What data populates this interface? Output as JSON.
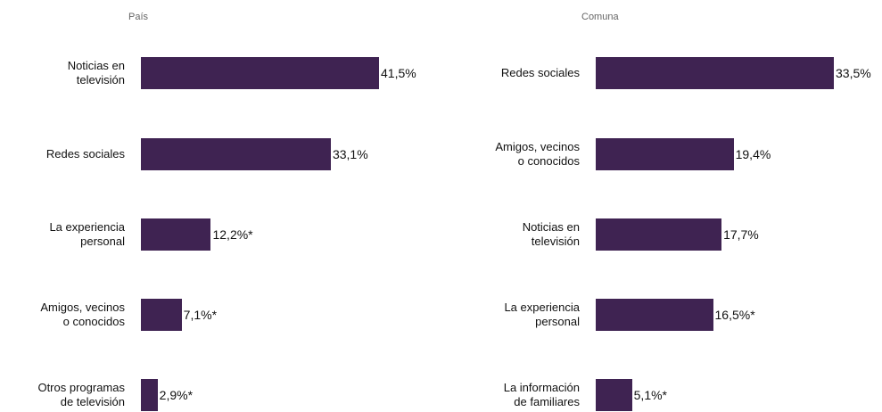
{
  "chart_data": [
    {
      "type": "bar",
      "title": "País",
      "color": "#3f2352",
      "categories": [
        "Noticias en televisión",
        "Redes sociales",
        "La experiencia personal",
        "Amigos, vecinos o conocidos",
        "Otros programas de televisión"
      ],
      "values": [
        41.5,
        33.1,
        12.2,
        7.1,
        2.9
      ],
      "value_labels": [
        "41,5%",
        "33,1%",
        "12,2%*",
        "7,1%*",
        "2,9%*"
      ]
    },
    {
      "type": "bar",
      "title": "Comuna",
      "color": "#3f2352",
      "categories": [
        "Redes sociales",
        "Amigos, vecinos o conocidos",
        "Noticias en televisión",
        "La experiencia personal",
        "La información de familiares"
      ],
      "values": [
        33.5,
        19.4,
        17.7,
        16.5,
        5.1
      ],
      "value_labels": [
        "33,5%",
        "19,4%",
        "17,7%",
        "16,5%*",
        "5,1%*"
      ]
    }
  ]
}
